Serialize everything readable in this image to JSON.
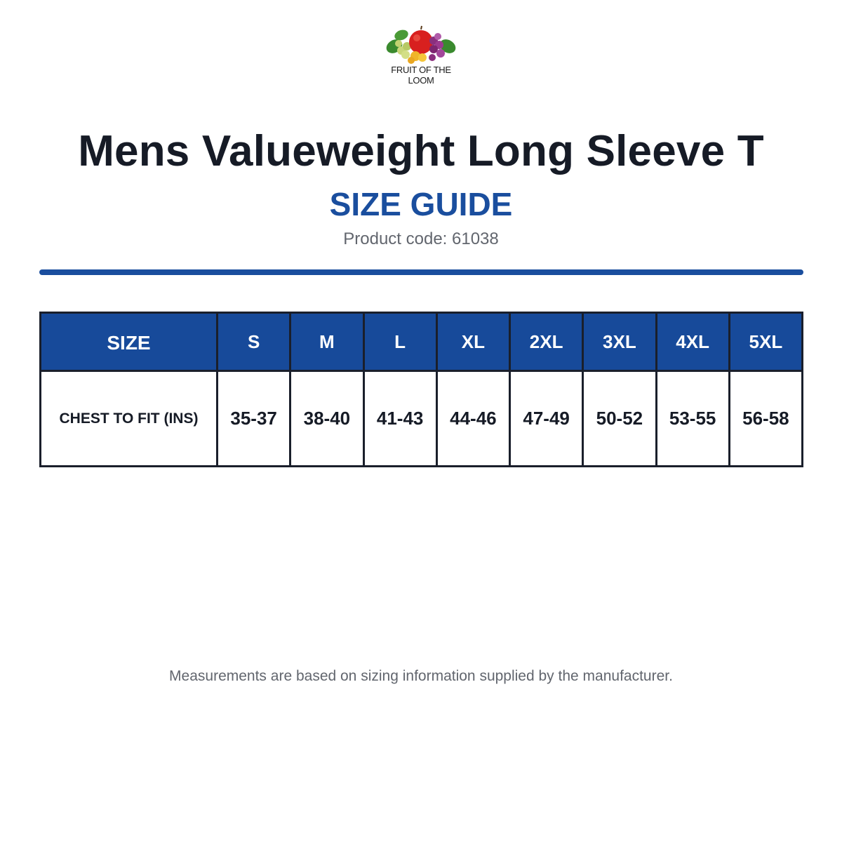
{
  "brand": {
    "logo_text": "FRUIT OF THE LOOM"
  },
  "header": {
    "title": "Mens Valueweight Long Sleeve T",
    "subtitle": "SIZE GUIDE",
    "product_code": "Product code: 61038"
  },
  "table": {
    "header_label": "SIZE",
    "sizes": [
      "S",
      "M",
      "L",
      "XL",
      "2XL",
      "3XL",
      "4XL",
      "5XL"
    ],
    "row_label": "CHEST TO FIT (INS)",
    "chest": [
      "35-37",
      "38-40",
      "41-43",
      "44-46",
      "47-49",
      "50-52",
      "53-55",
      "56-58"
    ]
  },
  "footer": {
    "note": "Measurements are based on sizing information supplied by the manufacturer."
  },
  "colors": {
    "accent": "#174a9a",
    "title": "#161b26",
    "muted": "#62666e"
  }
}
